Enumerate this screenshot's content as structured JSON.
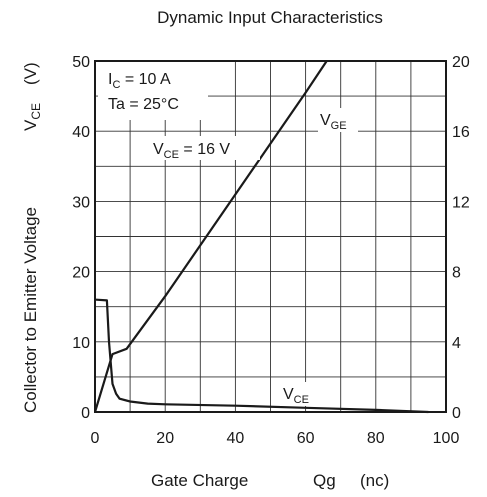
{
  "chart_data": {
    "type": "line",
    "title": "Dynamic Input Characteristics",
    "xlabel": {
      "main": "Gate Charge",
      "symbol": "Qg",
      "unit": "(nc)"
    },
    "ylabel_left": {
      "main": "Collector to Emitter Voltage",
      "symbol": "V",
      "symbol_sub": "CE",
      "unit": "(V)"
    },
    "xlim": [
      0,
      100
    ],
    "ylim_left": [
      0,
      50
    ],
    "ylim_right": [
      0,
      20
    ],
    "x_ticks": [
      "0",
      "20",
      "40",
      "60",
      "80",
      "100"
    ],
    "y_left_ticks": [
      "0",
      "10",
      "20",
      "30",
      "40",
      "50"
    ],
    "y_right_ticks": [
      "0",
      "4",
      "8",
      "12",
      "16",
      "20"
    ],
    "grid": true,
    "conditions": [
      {
        "main": "I",
        "sub": "C",
        "rest": " = 10 A"
      },
      {
        "main": "Ta = 25°C",
        "sub": "",
        "rest": ""
      }
    ],
    "series": [
      {
        "name": "V_GE",
        "label": {
          "main": "V",
          "sub": "GE"
        },
        "axis": "right",
        "x": [
          0,
          5,
          9,
          20,
          40,
          60,
          66
        ],
        "y": [
          0,
          3.3,
          3.6,
          6.6,
          12.4,
          18.2,
          20
        ]
      },
      {
        "name": "V_CE",
        "label": {
          "main": "V",
          "sub": "CE"
        },
        "axis": "left",
        "x": [
          0,
          0.4,
          3.4,
          4,
          5,
          6,
          7,
          10,
          15,
          20,
          40,
          60,
          80,
          95
        ],
        "y": [
          16,
          16,
          15.9,
          10,
          4,
          2.6,
          1.9,
          1.5,
          1.2,
          1.1,
          0.9,
          0.6,
          0.3,
          0
        ]
      }
    ],
    "annotations": [
      {
        "main": "V",
        "sub": "CE",
        "rest": " = 16 V"
      }
    ]
  }
}
